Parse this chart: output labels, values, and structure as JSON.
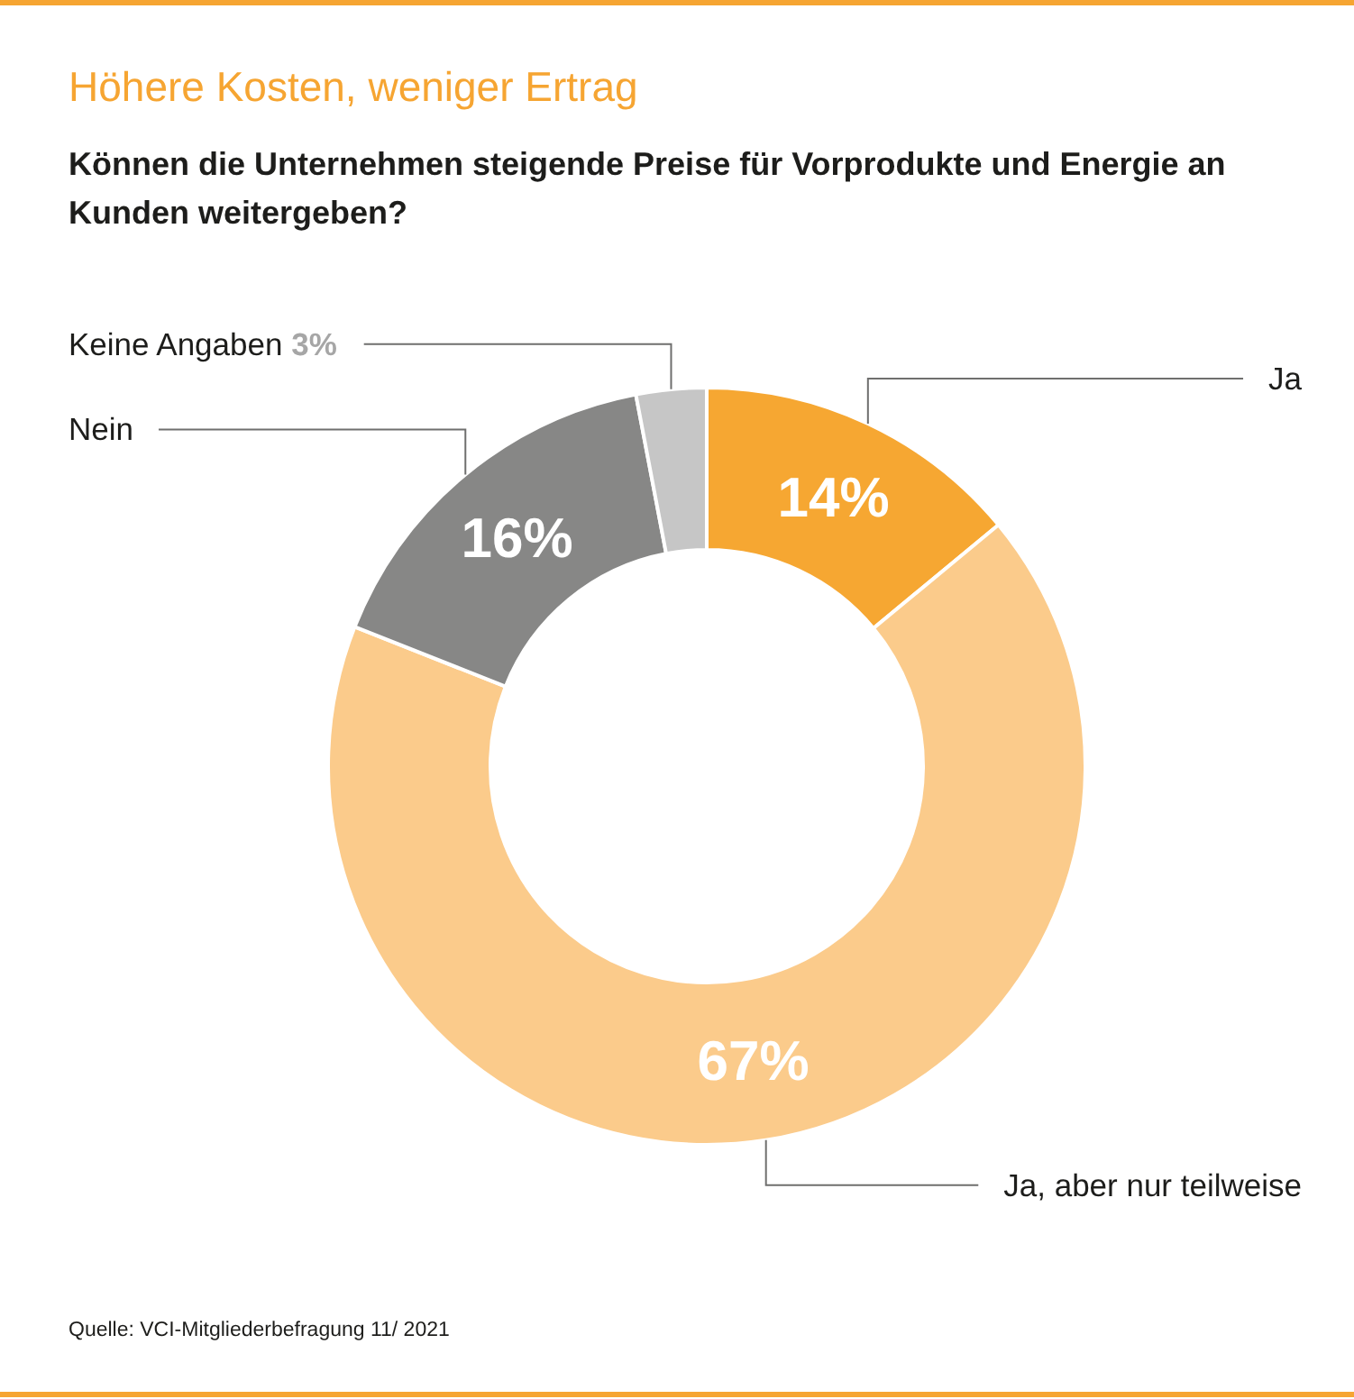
{
  "chart_data": {
    "type": "donut",
    "title": "Höhere Kosten, weniger Ertrag",
    "subtitle": "Können die Unternehmen steigende Preise für Vorprodukte und Energie an Kunden weitergeben?",
    "categories": [
      "Ja",
      "Ja, aber nur teilweise",
      "Nein",
      "Keine Angaben"
    ],
    "values": [
      14,
      67,
      16,
      3
    ],
    "colors": [
      "#f6a732",
      "#fbcb8b",
      "#878786",
      "#c6c6c6"
    ],
    "value_labels": [
      "14%",
      "67%",
      "16%",
      "3%"
    ],
    "annotations": [
      "Quelle: VCI-Mitgliederbefragung 11/ 2021"
    ]
  }
}
